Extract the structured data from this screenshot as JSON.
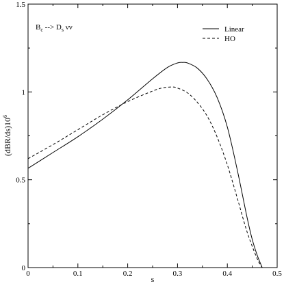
{
  "chart_data": {
    "type": "line",
    "annotation": {
      "main": "B",
      "sub1": "c",
      "arrow": " --> D",
      "sub2": "s",
      "rest": " νν"
    },
    "xlabel": "s",
    "ylabel_main": "(dBR/ds)10",
    "ylabel_exp": "6",
    "xlim": [
      0,
      0.5
    ],
    "ylim": [
      0,
      1.5
    ],
    "x_ticks": [
      "0",
      "0.1",
      "0.2",
      "0.3",
      "0.4",
      "0.5"
    ],
    "y_ticks": [
      "0",
      "0.5",
      "1",
      "1.5"
    ],
    "legend_position": "top-right",
    "grid": false,
    "series": [
      {
        "name": "Linear",
        "style": "solid",
        "x": [
          0,
          0.05,
          0.1,
          0.15,
          0.2,
          0.25,
          0.28,
          0.3,
          0.31,
          0.32,
          0.34,
          0.36,
          0.38,
          0.4,
          0.42,
          0.44,
          0.45,
          0.46,
          0.47
        ],
        "y": [
          0.565,
          0.655,
          0.745,
          0.845,
          0.955,
          1.075,
          1.14,
          1.165,
          1.168,
          1.165,
          1.135,
          1.07,
          0.965,
          0.8,
          0.555,
          0.28,
          0.16,
          0.07,
          0
        ]
      },
      {
        "name": "HO",
        "style": "dashed",
        "x": [
          0,
          0.05,
          0.1,
          0.15,
          0.2,
          0.25,
          0.27,
          0.29,
          0.3,
          0.32,
          0.34,
          0.36,
          0.38,
          0.4,
          0.42,
          0.44,
          0.46,
          0.47
        ],
        "y": [
          0.62,
          0.7,
          0.785,
          0.87,
          0.945,
          1.005,
          1.023,
          1.028,
          1.022,
          0.995,
          0.94,
          0.86,
          0.74,
          0.585,
          0.395,
          0.2,
          0.05,
          0
        ]
      }
    ]
  }
}
